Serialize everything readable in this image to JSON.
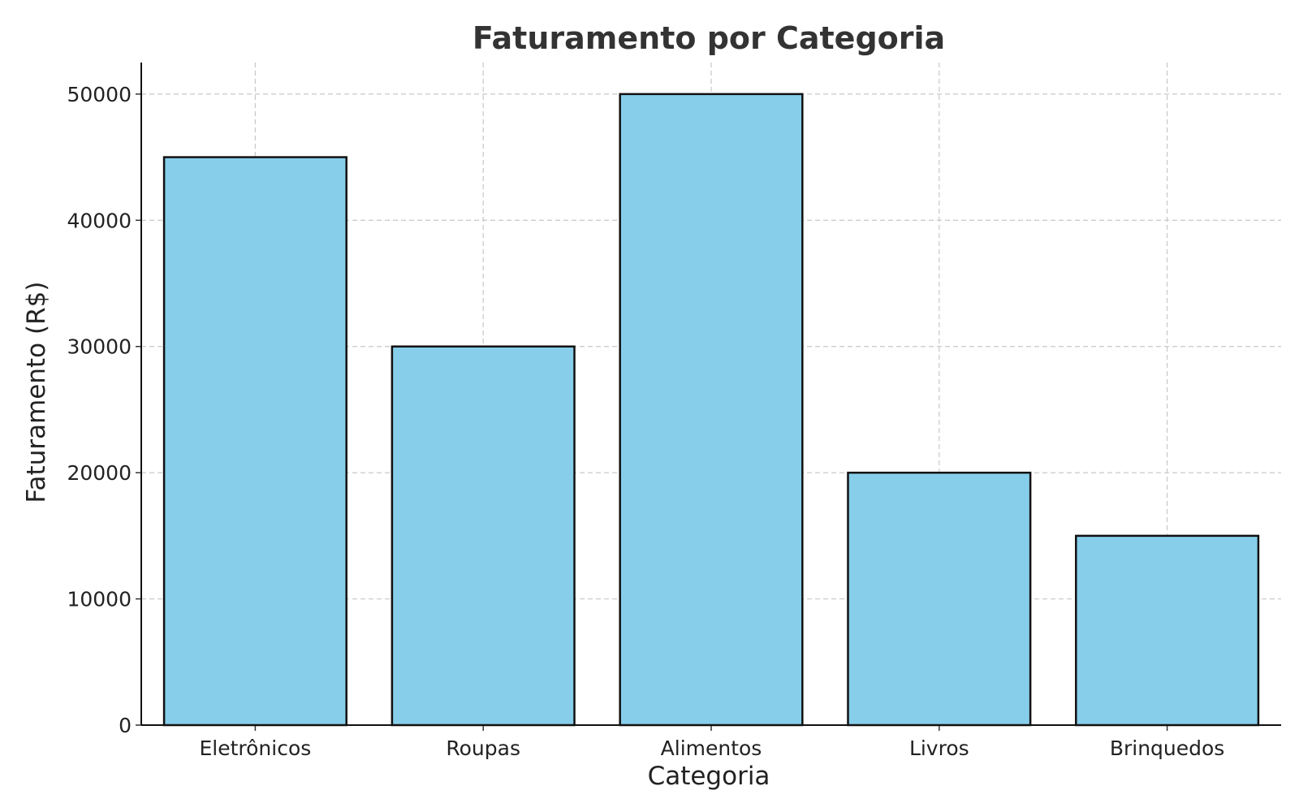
{
  "chart_data": {
    "type": "bar",
    "title": "Faturamento por Categoria",
    "xlabel": "Categoria",
    "ylabel": "Faturamento (R$)",
    "categories": [
      "Eletrônicos",
      "Roupas",
      "Alimentos",
      "Livros",
      "Brinquedos"
    ],
    "values": [
      45000,
      30000,
      50000,
      20000,
      15000
    ],
    "ylim": [
      0,
      52500
    ],
    "yticks": [
      0,
      10000,
      20000,
      30000,
      40000,
      50000
    ],
    "ytick_labels": [
      "0",
      "10000",
      "20000",
      "30000",
      "40000",
      "50000"
    ],
    "grid": true,
    "bar_color": "#87CEEB",
    "edge_color": "#111111"
  }
}
